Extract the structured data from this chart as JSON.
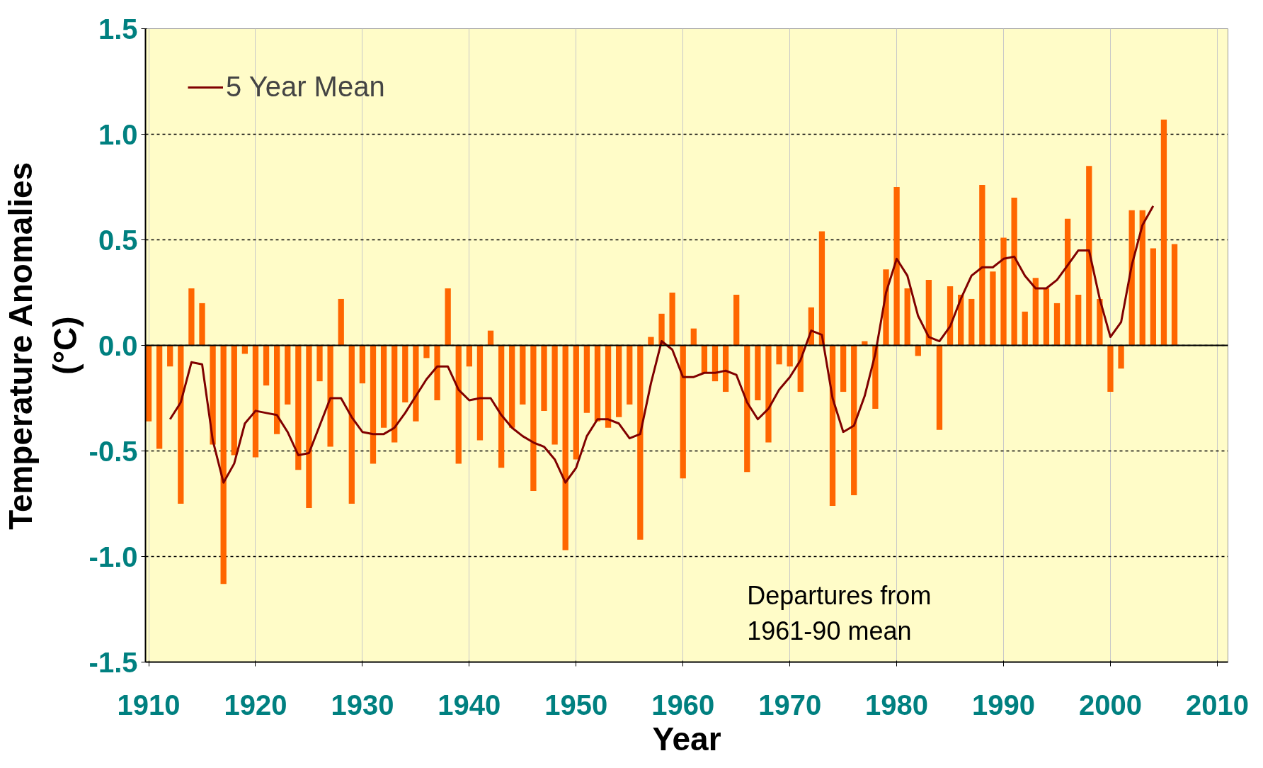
{
  "chart_data": {
    "type": "bar",
    "xlabel": "Year",
    "ylabel": "Temperature Anomalies\n(°C)",
    "x": [
      1910,
      1911,
      1912,
      1913,
      1914,
      1915,
      1916,
      1917,
      1918,
      1919,
      1920,
      1921,
      1922,
      1923,
      1924,
      1925,
      1926,
      1927,
      1928,
      1929,
      1930,
      1931,
      1932,
      1933,
      1934,
      1935,
      1936,
      1937,
      1938,
      1939,
      1940,
      1941,
      1942,
      1943,
      1944,
      1945,
      1946,
      1947,
      1948,
      1949,
      1950,
      1951,
      1952,
      1953,
      1954,
      1955,
      1956,
      1957,
      1958,
      1959,
      1960,
      1961,
      1962,
      1963,
      1964,
      1965,
      1966,
      1967,
      1968,
      1969,
      1970,
      1971,
      1972,
      1973,
      1974,
      1975,
      1976,
      1977,
      1978,
      1979,
      1980,
      1981,
      1982,
      1983,
      1984,
      1985,
      1986,
      1987,
      1988,
      1989,
      1990,
      1991,
      1992,
      1993,
      1994,
      1995,
      1996,
      1997,
      1998,
      1999,
      2000,
      2001,
      2002,
      2003,
      2004,
      2005,
      2006
    ],
    "series": [
      {
        "color": "#ff6600",
        "values": [
          -0.36,
          -0.49,
          -0.1,
          -0.75,
          0.27,
          0.2,
          -0.47,
          -1.13,
          -0.52,
          -0.04,
          -0.53,
          -0.19,
          -0.42,
          -0.28,
          -0.59,
          -0.77,
          -0.17,
          -0.48,
          0.22,
          -0.75,
          -0.18,
          -0.56,
          -0.39,
          -0.46,
          -0.27,
          -0.36,
          -0.06,
          -0.26,
          0.27,
          -0.56,
          -0.1,
          -0.45,
          0.07,
          -0.58,
          -0.39,
          -0.28,
          -0.69,
          -0.31,
          -0.47,
          -0.97,
          -0.54,
          -0.32,
          -0.36,
          -0.39,
          -0.34,
          -0.28,
          -0.92,
          0.04,
          0.15,
          0.25,
          -0.63,
          0.08,
          -0.13,
          -0.17,
          -0.22,
          0.24,
          -0.6,
          -0.26,
          -0.46,
          -0.09,
          -0.1,
          -0.22,
          0.18,
          0.54,
          -0.76,
          -0.22,
          -0.71,
          0.02,
          -0.3,
          0.36,
          0.75,
          0.27,
          -0.05,
          0.31,
          -0.4,
          0.28,
          0.24,
          0.22,
          0.76,
          0.35,
          0.51,
          0.7,
          0.16,
          0.32,
          0.27,
          0.2,
          0.6,
          0.24,
          0.85,
          0.22,
          -0.22,
          -0.11,
          0.64,
          0.64,
          0.46,
          1.07,
          0.48
        ]
      },
      {
        "type": "line",
        "name": "5 Year Mean",
        "color": "#800000",
        "x": [
          1912,
          1913,
          1914,
          1915,
          1916,
          1917,
          1918,
          1919,
          1920,
          1921,
          1922,
          1923,
          1924,
          1925,
          1926,
          1927,
          1928,
          1929,
          1930,
          1931,
          1932,
          1933,
          1934,
          1935,
          1936,
          1937,
          1938,
          1939,
          1940,
          1941,
          1942,
          1943,
          1944,
          1945,
          1946,
          1947,
          1948,
          1949,
          1950,
          1951,
          1952,
          1953,
          1954,
          1955,
          1956,
          1957,
          1958,
          1959,
          1960,
          1961,
          1962,
          1963,
          1964,
          1965,
          1966,
          1967,
          1968,
          1969,
          1970,
          1971,
          1972,
          1973,
          1974,
          1975,
          1976,
          1977,
          1978,
          1979,
          1980,
          1981,
          1982,
          1983,
          1984,
          1985,
          1986,
          1987,
          1988,
          1989,
          1990,
          1991,
          1992,
          1993,
          1994,
          1995,
          1996,
          1997,
          1998,
          1999,
          2000,
          2001,
          2002,
          2003,
          2004
        ],
        "values": [
          -0.35,
          -0.27,
          -0.08,
          -0.09,
          -0.45,
          -0.65,
          -0.56,
          -0.37,
          -0.31,
          -0.32,
          -0.33,
          -0.41,
          -0.52,
          -0.51,
          -0.38,
          -0.25,
          -0.25,
          -0.34,
          -0.41,
          -0.42,
          -0.42,
          -0.39,
          -0.32,
          -0.24,
          -0.16,
          -0.1,
          -0.1,
          -0.21,
          -0.26,
          -0.25,
          -0.25,
          -0.33,
          -0.39,
          -0.43,
          -0.46,
          -0.48,
          -0.54,
          -0.65,
          -0.58,
          -0.43,
          -0.35,
          -0.35,
          -0.37,
          -0.44,
          -0.42,
          -0.18,
          0.02,
          -0.02,
          -0.15,
          -0.15,
          -0.13,
          -0.13,
          -0.12,
          -0.14,
          -0.27,
          -0.35,
          -0.3,
          -0.21,
          -0.15,
          -0.07,
          0.07,
          0.05,
          -0.25,
          -0.41,
          -0.38,
          -0.24,
          -0.04,
          0.25,
          0.41,
          0.33,
          0.14,
          0.04,
          0.02,
          0.09,
          0.22,
          0.33,
          0.37,
          0.37,
          0.41,
          0.42,
          0.33,
          0.27,
          0.27,
          0.31,
          0.38,
          0.45,
          0.45,
          0.22,
          0.04,
          0.11,
          0.38,
          0.57,
          0.66
        ]
      }
    ],
    "xlim": [
      1909.7,
      2011
    ],
    "xticks": [
      1910,
      1920,
      1930,
      1940,
      1950,
      1960,
      1970,
      1980,
      1990,
      2000,
      2010
    ],
    "ylim": [
      -1.5,
      1.5
    ],
    "yticks": [
      {
        "value": -1.5,
        "label": "-1.5"
      },
      {
        "value": -1.0,
        "label": "-1.0"
      },
      {
        "value": -0.5,
        "label": "-0.5"
      },
      {
        "value": 0,
        "label": "0.0"
      },
      {
        "value": 0.5,
        "label": "0.5"
      },
      {
        "value": 1.0,
        "label": "1.0"
      },
      {
        "value": 1.5,
        "label": "1.5"
      }
    ],
    "ref_lines": [
      {
        "axis": "y",
        "value": 0,
        "color": "#000000"
      }
    ],
    "grid": true,
    "legend": "top left",
    "marker": "none",
    "line_style": "solid",
    "annotations": [
      "Departures from\n1961-90 mean"
    ]
  }
}
